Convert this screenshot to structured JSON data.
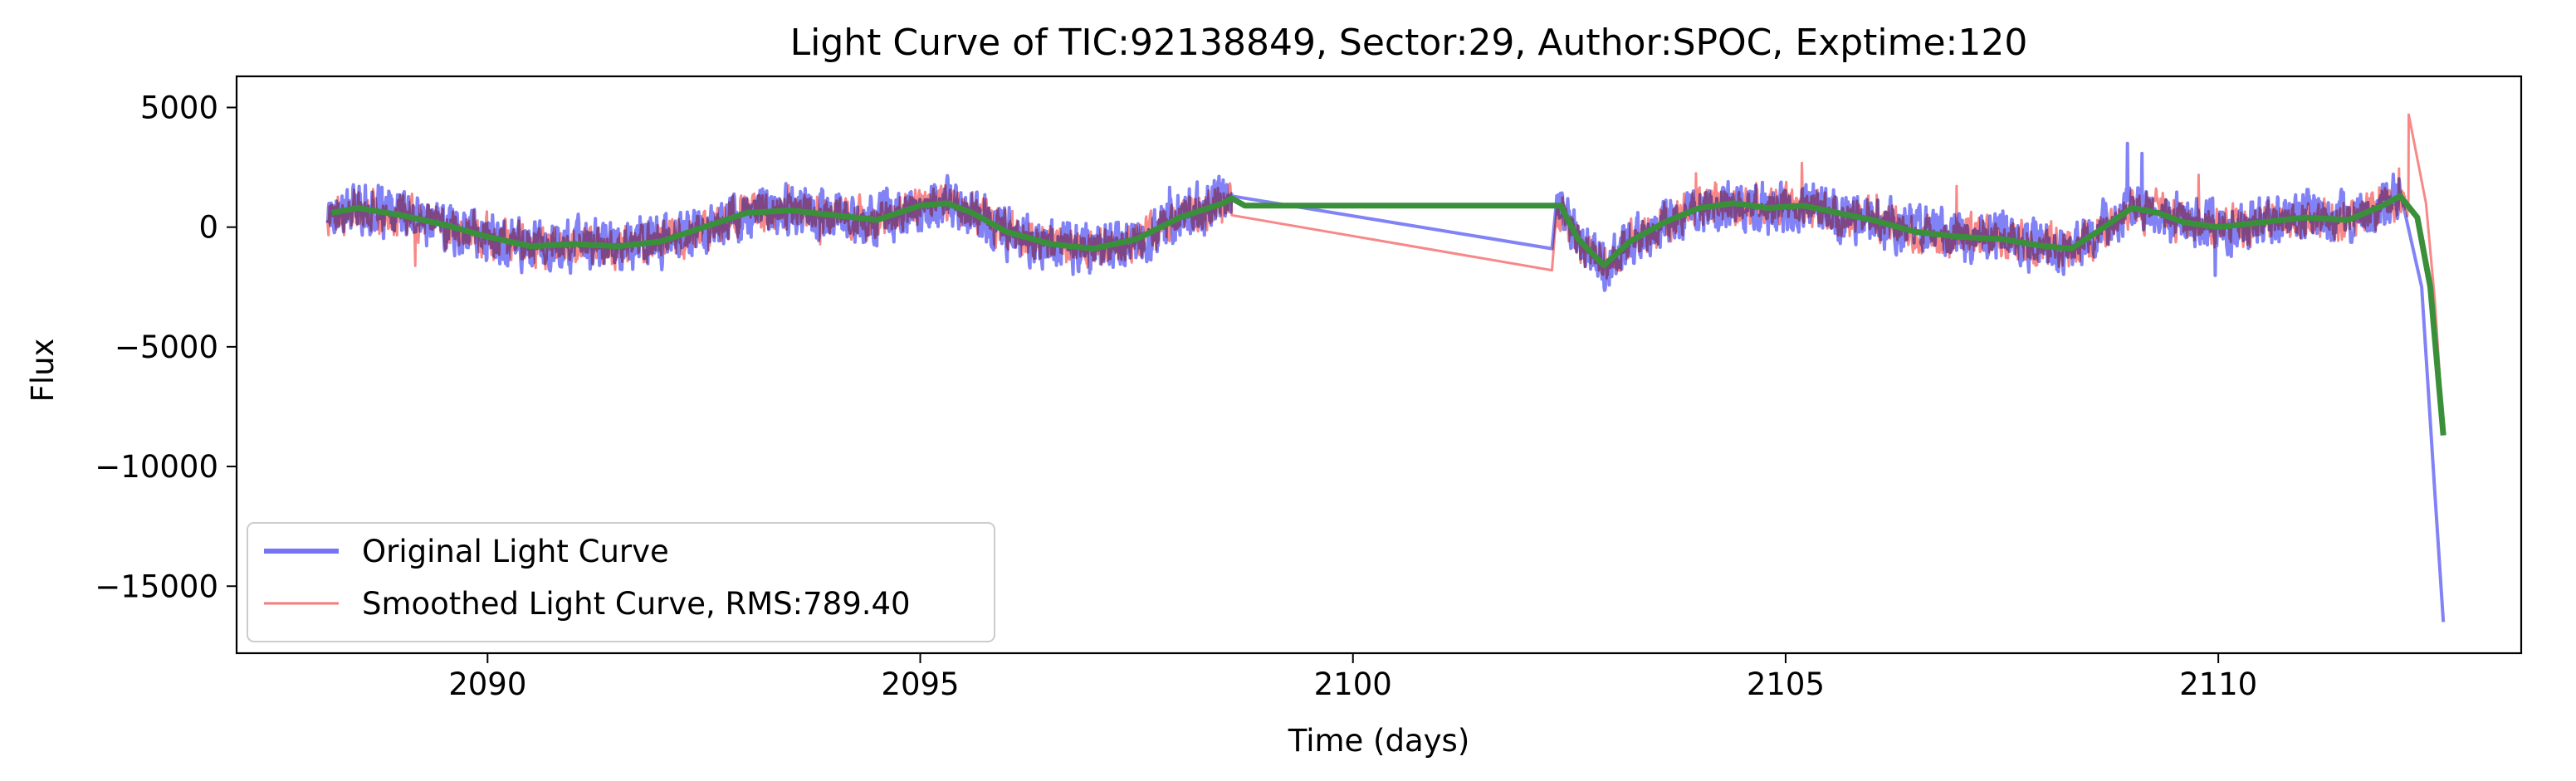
{
  "chart_data": {
    "type": "line",
    "title": "Light Curve of TIC:92138849, Sector:29, Author:SPOC, Exptime:120",
    "xlabel": "Time (days)",
    "ylabel": "Flux",
    "xlim": [
      2087.1,
      2113.5
    ],
    "ylim": [
      -17800,
      6300
    ],
    "xticks": [
      2090,
      2095,
      2100,
      2105,
      2110
    ],
    "xtick_labels": [
      "2090",
      "2095",
      "2100",
      "2105",
      "2110"
    ],
    "yticks": [
      5000,
      0,
      -5000,
      -10000,
      -15000
    ],
    "ytick_labels": [
      "5000",
      "0",
      "−5000",
      "−10000",
      "−15000"
    ],
    "grid": false,
    "legend_position": "lower-left",
    "segments": [
      [
        2088.15,
        2098.6
      ],
      [
        2102.35,
        2112.6
      ]
    ],
    "series": [
      {
        "name": "Original Light Curve",
        "color": "#7474f6",
        "amplitude": 1500,
        "seed": 17,
        "gap_bridge": [
          [
            2098.6,
            1300
          ],
          [
            2102.3,
            -900
          ]
        ],
        "tail": [
          [
            2112.1,
            1500
          ],
          [
            2112.35,
            -2500
          ],
          [
            2112.5,
            -11000
          ],
          [
            2112.6,
            -16500
          ]
        ]
      },
      {
        "name": "Smoothed Light Curve, RMS:789.40",
        "color": "#f77b7b",
        "amplitude": 1250,
        "seed": 91,
        "gap_bridge": [
          [
            2098.6,
            500
          ],
          [
            2102.3,
            -1800
          ]
        ],
        "tail": [
          [
            2112.2,
            4700
          ],
          [
            2112.4,
            1000
          ],
          [
            2112.5,
            -3000
          ],
          [
            2112.6,
            -8500
          ]
        ]
      },
      {
        "name": "trend",
        "color": "#3a8f3a",
        "points": [
          [
            2088.2,
            600
          ],
          [
            2088.5,
            800
          ],
          [
            2089.0,
            500
          ],
          [
            2089.5,
            100
          ],
          [
            2090.0,
            -400
          ],
          [
            2090.5,
            -800
          ],
          [
            2091.0,
            -700
          ],
          [
            2091.5,
            -800
          ],
          [
            2092.0,
            -600
          ],
          [
            2092.5,
            0
          ],
          [
            2093.0,
            600
          ],
          [
            2093.5,
            700
          ],
          [
            2094.0,
            500
          ],
          [
            2094.5,
            300
          ],
          [
            2095.0,
            900
          ],
          [
            2095.3,
            1000
          ],
          [
            2095.6,
            600
          ],
          [
            2096.0,
            -200
          ],
          [
            2096.5,
            -700
          ],
          [
            2097.0,
            -900
          ],
          [
            2097.5,
            -500
          ],
          [
            2098.0,
            400
          ],
          [
            2098.5,
            1000
          ],
          [
            2098.6,
            1200
          ],
          [
            2098.75,
            900
          ],
          [
            2102.4,
            900
          ],
          [
            2102.6,
            -500
          ],
          [
            2102.9,
            -1600
          ],
          [
            2103.2,
            -600
          ],
          [
            2103.6,
            200
          ],
          [
            2104.0,
            800
          ],
          [
            2104.4,
            1000
          ],
          [
            2104.8,
            800
          ],
          [
            2105.2,
            900
          ],
          [
            2105.6,
            600
          ],
          [
            2106.0,
            300
          ],
          [
            2106.5,
            -200
          ],
          [
            2107.0,
            -400
          ],
          [
            2107.5,
            -500
          ],
          [
            2108.0,
            -800
          ],
          [
            2108.3,
            -900
          ],
          [
            2108.6,
            -200
          ],
          [
            2109.0,
            800
          ],
          [
            2109.3,
            600
          ],
          [
            2109.6,
            200
          ],
          [
            2110.0,
            0
          ],
          [
            2110.5,
            200
          ],
          [
            2111.0,
            400
          ],
          [
            2111.5,
            300
          ],
          [
            2111.9,
            900
          ],
          [
            2112.1,
            1300
          ],
          [
            2112.3,
            400
          ],
          [
            2112.45,
            -2500
          ],
          [
            2112.6,
            -8700
          ]
        ]
      }
    ]
  }
}
